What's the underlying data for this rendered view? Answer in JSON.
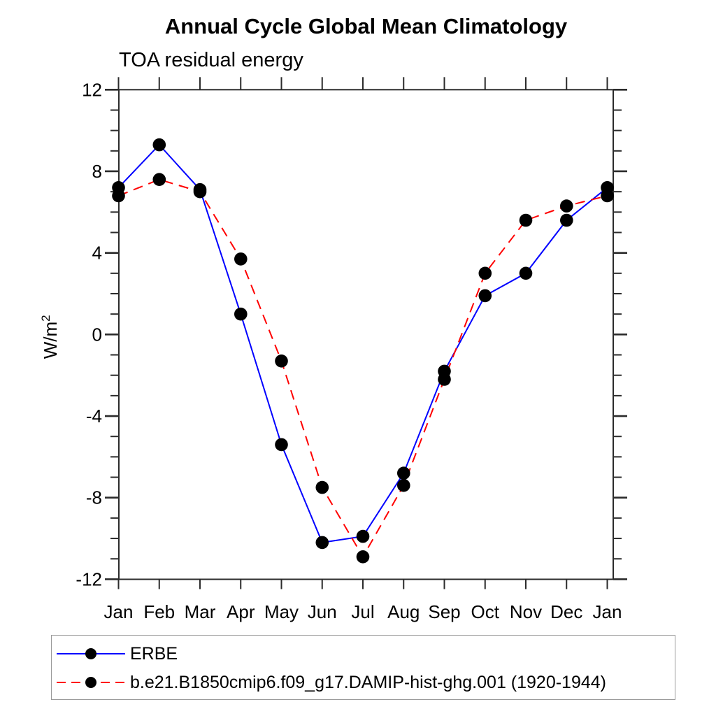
{
  "title": "Annual Cycle Global Mean Climatology",
  "subtitle": "TOA residual energy",
  "ylabel_parts": {
    "base": "W/m",
    "exp": "2"
  },
  "chart_data": {
    "type": "line",
    "title": "Annual Cycle Global Mean Climatology",
    "subtitle": "TOA residual energy",
    "xlabel": "",
    "ylabel": "W/m²",
    "categories": [
      "Jan",
      "Feb",
      "Mar",
      "Apr",
      "May",
      "Jun",
      "Jul",
      "Aug",
      "Sep",
      "Oct",
      "Nov",
      "Dec",
      "Jan"
    ],
    "series": [
      {
        "name": "ERBE",
        "color": "#0000ff",
        "line_style": "solid",
        "marker": "filled-circle",
        "marker_color": "#000000",
        "values": [
          7.2,
          9.3,
          7.1,
          1.0,
          -5.4,
          -10.2,
          -9.9,
          -6.8,
          -1.8,
          1.9,
          3.0,
          5.6,
          7.2
        ]
      },
      {
        "name": "b.e21.B1850cmip6.f09_g17.DAMIP-hist-ghg.001 (1920-1944)",
        "color": "#ff0000",
        "line_style": "dashed",
        "marker": "filled-circle",
        "marker_color": "#000000",
        "values": [
          6.8,
          7.6,
          7.0,
          3.7,
          -1.3,
          -7.5,
          -10.9,
          -7.4,
          -2.2,
          3.0,
          5.6,
          6.3,
          6.8
        ]
      }
    ],
    "ylim": [
      -12,
      12
    ],
    "y_major_tick_step": 4,
    "y_minor_tick_step": 1,
    "y_tick_labels": [
      "12",
      "8",
      "4",
      "0",
      "-4",
      "-8",
      "-12"
    ],
    "grid": false,
    "legend_position": "bottom-left"
  }
}
